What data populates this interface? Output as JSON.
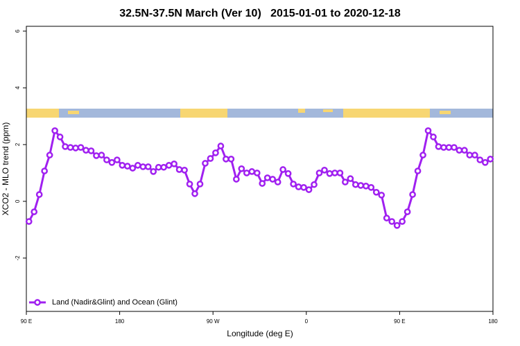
{
  "chart_data": {
    "type": "line",
    "title": "32.5N-37.5N March (Ver 10)   2015-01-01 to 2020-12-18",
    "xlabel": "Longitude (deg E)",
    "ylabel": "XCO2 - MLO trend (ppm)",
    "xlim": [
      90,
      540
    ],
    "ylim": [
      -3.88,
      6.17
    ],
    "xticks": [
      {
        "value": 90,
        "label": "90 E"
      },
      180,
      {
        "value": 270,
        "label": "90 W"
      },
      {
        "value": 360,
        "label": "0"
      },
      {
        "value": 450,
        "label": "90 E"
      },
      {
        "value": 540,
        "label": "180"
      }
    ],
    "yticks": [
      6,
      4,
      2,
      0,
      -2
    ],
    "legend": "bottom-left",
    "x": [
      92.5,
      97.5,
      102.5,
      107.5,
      112.5,
      117.5,
      122.5,
      127.5,
      132.5,
      137.5,
      142.5,
      147.5,
      152.5,
      157.5,
      162.5,
      167.5,
      172.5,
      177.5,
      182.5,
      187.5,
      192.5,
      197.5,
      202.5,
      207.5,
      212.5,
      217.5,
      222.5,
      227.5,
      232.5,
      237.5,
      242.5,
      247.5,
      252.5,
      257.5,
      262.5,
      267.5,
      272.5,
      277.5,
      282.5,
      287.5,
      292.5,
      297.5,
      302.5,
      307.5,
      312.5,
      317.5,
      322.5,
      327.5,
      332.5,
      337.5,
      342.5,
      347.5,
      352.5,
      357.5,
      362.5,
      367.5,
      372.5,
      377.5,
      382.5,
      387.5,
      392.5,
      397.5,
      402.5,
      407.5,
      412.5,
      417.5,
      422.5,
      427.5,
      432.5,
      437.5,
      442.5,
      447.5,
      452.5,
      457.5,
      462.5,
      467.5,
      472.5,
      477.5,
      482.5,
      487.5,
      492.5,
      497.5,
      502.5,
      507.5,
      512.5,
      517.5,
      522.5,
      527.5,
      532.5,
      537.5
    ],
    "series": [
      {
        "name": "Land (Nadir&Glint) and Ocean (Glint)",
        "color": "#a020f0",
        "values": [
          -0.71,
          -0.37,
          0.24,
          1.07,
          1.63,
          2.49,
          2.27,
          1.93,
          1.9,
          1.88,
          1.9,
          1.8,
          1.78,
          1.61,
          1.63,
          1.46,
          1.37,
          1.46,
          1.27,
          1.24,
          1.17,
          1.27,
          1.22,
          1.22,
          1.05,
          1.2,
          1.2,
          1.27,
          1.32,
          1.12,
          1.1,
          0.61,
          0.27,
          0.61,
          1.34,
          1.51,
          1.71,
          1.95,
          1.49,
          1.49,
          0.78,
          1.15,
          1.0,
          1.05,
          1.0,
          0.63,
          0.83,
          0.78,
          0.68,
          1.12,
          0.98,
          0.61,
          0.51,
          0.49,
          0.41,
          0.59,
          1.0,
          1.1,
          0.98,
          1.0,
          1.0,
          0.68,
          0.8,
          0.59,
          0.56,
          0.54,
          0.49,
          0.32,
          0.22,
          -0.59,
          -0.71,
          -0.85,
          -0.71,
          -0.37,
          0.24,
          1.07,
          1.63,
          2.49,
          2.27,
          1.93,
          1.9,
          1.9,
          1.9,
          1.8,
          1.8,
          1.63,
          1.63,
          1.46,
          1.37,
          1.49
        ]
      }
    ]
  }
}
